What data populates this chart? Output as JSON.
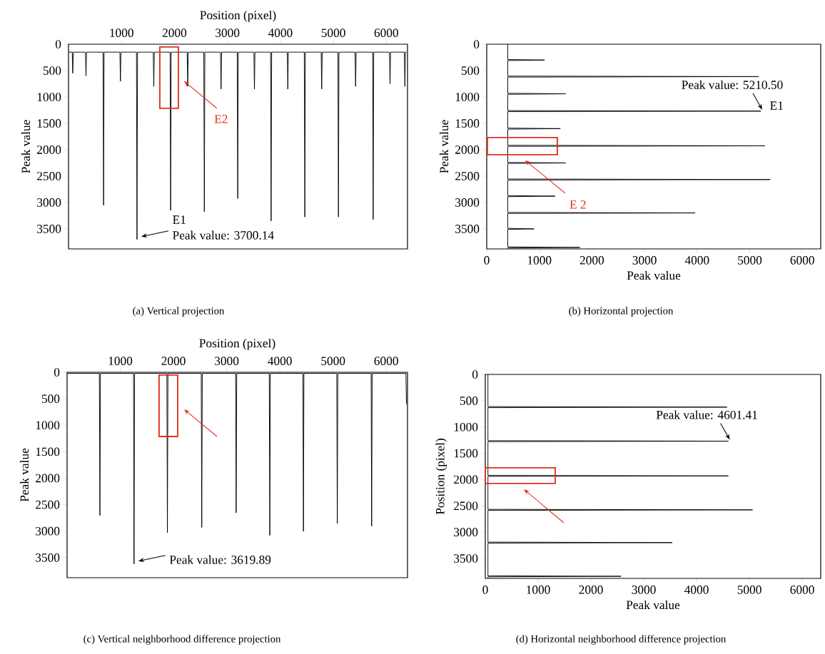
{
  "chart_data": [
    {
      "type": "line",
      "title": "(a) Vertical projection",
      "xlabel": "Position (pixel)",
      "ylabel": "Peak value",
      "color": "#000000",
      "x": [
        0,
        70,
        80,
        90,
        320,
        330,
        340,
        652,
        662,
        672,
        970,
        980,
        990,
        1283,
        1293,
        1303,
        1600,
        1610,
        1620,
        1918,
        1928,
        1938,
        2240,
        2250,
        2260,
        2554,
        2564,
        2574,
        2870,
        2880,
        2890,
        3185,
        3195,
        3205,
        3500,
        3510,
        3520,
        3815,
        3825,
        3835,
        4130,
        4140,
        4150,
        4451,
        4461,
        4471,
        4770,
        4780,
        4790,
        5086,
        5096,
        5106,
        5410,
        5420,
        5430,
        5742,
        5752,
        5762,
        6060,
        6070,
        6080,
        6340,
        6350,
        6360,
        6380
      ],
      "values": [
        150,
        150,
        550,
        150,
        150,
        600,
        150,
        150,
        3050,
        150,
        150,
        700,
        150,
        150,
        3700.14,
        150,
        150,
        800,
        150,
        150,
        3150,
        150,
        150,
        800,
        150,
        150,
        3175,
        150,
        150,
        850,
        150,
        150,
        2925,
        150,
        150,
        850,
        150,
        150,
        3350,
        150,
        150,
        850,
        150,
        150,
        3275,
        150,
        150,
        850,
        150,
        150,
        3275,
        150,
        150,
        800,
        150,
        150,
        3325,
        150,
        150,
        750,
        150,
        150,
        800,
        150,
        150
      ],
      "xlim": [
        0,
        6400
      ],
      "xticks": [
        1000,
        2000,
        3000,
        4000,
        5000,
        6000
      ],
      "ylim": [
        3880,
        0
      ],
      "yticks": [
        0,
        500,
        1000,
        1500,
        2000,
        2500,
        3000,
        3500
      ],
      "annotations": [
        "E1",
        {
          "text": "Peak value: 3700.14",
          "x": 1293,
          "y": 3700.14
        },
        {
          "text": "E2",
          "x": 2180,
          "y": 700
        }
      ]
    },
    {
      "type": "line",
      "title": "(b) Horizontal projection",
      "xlabel": "Peak value",
      "ylabel": "Peak value",
      "color": "#000000",
      "x": [
        400,
        400,
        1100,
        400,
        400,
        5170,
        400,
        400,
        1500,
        400,
        400,
        5210.5,
        400,
        400,
        1400,
        400,
        400,
        5290,
        400,
        400,
        1500,
        400,
        400,
        5390,
        400,
        400,
        1300,
        400,
        400,
        3960,
        400,
        400,
        900,
        400,
        400,
        1770,
        400,
        400
      ],
      "values": [
        0,
        290,
        300,
        310,
        604,
        614,
        624,
        930,
        940,
        950,
        1258,
        1268,
        1278,
        1590,
        1600,
        1610,
        1916,
        1926,
        1936,
        2240,
        2250,
        2260,
        2555,
        2565,
        2575,
        2870,
        2880,
        2890,
        3188,
        3198,
        3208,
        3490,
        3500,
        3510,
        3842,
        3852,
        3862,
        3870
      ],
      "xlim": [
        0,
        6350
      ],
      "xticks": [
        0,
        1000,
        2000,
        3000,
        4000,
        5000,
        6000
      ],
      "ylim": [
        3880,
        0
      ],
      "yticks": [
        0,
        500,
        1000,
        1500,
        2000,
        2500,
        3000,
        3500
      ],
      "annotations": [
        {
          "text": "Peak value: 5210.50",
          "x": 5210.5,
          "y": 1268
        },
        "E1",
        {
          "text": "E 2",
          "x": 730,
          "y": 2200
        }
      ]
    },
    {
      "type": "line",
      "title": "(c) Vertical neighborhood difference projection",
      "xlabel": "Position (pixel)",
      "ylabel": "Peak value",
      "color": "#000000",
      "x": [
        0,
        607,
        617,
        627,
        1249,
        1259,
        1269,
        1876,
        1886,
        1896,
        2522,
        2532,
        2542,
        3169,
        3179,
        3189,
        3801,
        3811,
        3821,
        4433,
        4443,
        4453,
        5070,
        5080,
        5090,
        5716,
        5726,
        5736,
        6370,
        6380
      ],
      "values": [
        20,
        20,
        2705,
        20,
        20,
        3619.89,
        20,
        20,
        3030,
        20,
        20,
        2930,
        20,
        20,
        2655,
        20,
        20,
        3080,
        20,
        20,
        3005,
        20,
        20,
        2855,
        20,
        20,
        2905,
        20,
        20,
        600
      ],
      "xlim": [
        0,
        6400
      ],
      "xticks": [
        1000,
        2000,
        3000,
        4000,
        5000,
        6000
      ],
      "ylim": [
        3880,
        0
      ],
      "yticks": [
        0,
        500,
        1000,
        1500,
        2000,
        2500,
        3000,
        3500
      ],
      "annotations": [
        {
          "text": "Peak value: 3619.89",
          "x": 1259,
          "y": 3619.89
        }
      ]
    },
    {
      "type": "line",
      "title": "(d) Horizontal neighborhood difference projection",
      "xlabel": "Peak value",
      "ylabel": "Position (pixel)",
      "color": "#000000",
      "x": [
        50,
        50,
        4575,
        50,
        50,
        4601.41,
        50,
        50,
        4600,
        50,
        50,
        5060,
        50,
        50,
        3540,
        50,
        50,
        2570,
        50,
        50
      ],
      "values": [
        0,
        612,
        622,
        632,
        1259,
        1269,
        1279,
        1920,
        1930,
        1940,
        2566,
        2576,
        2586,
        3189,
        3199,
        3209,
        3830,
        3840,
        3850,
        3870
      ],
      "xlim": [
        0,
        6350
      ],
      "xticks": [
        0,
        1000,
        2000,
        3000,
        4000,
        5000,
        6000
      ],
      "ylim": [
        3880,
        0
      ],
      "yticks": [
        0,
        500,
        1000,
        1500,
        2000,
        2500,
        3000,
        3500
      ],
      "annotations": [
        {
          "text": "Peak value: 4601.41",
          "x": 4601.41,
          "y": 1269
        }
      ]
    }
  ]
}
